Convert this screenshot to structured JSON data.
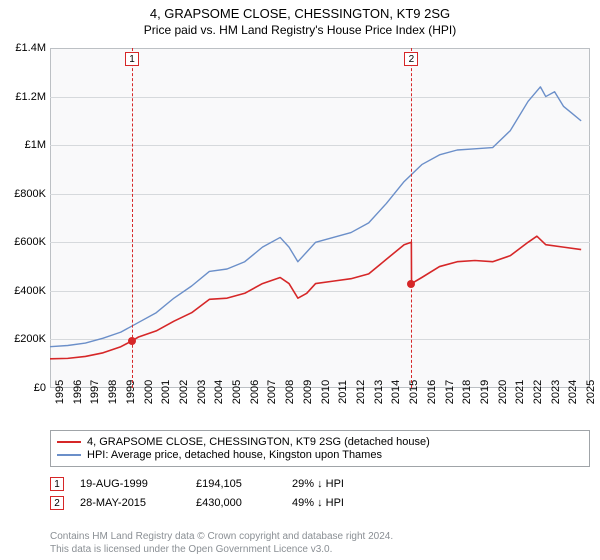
{
  "title": {
    "line1": "4, GRAPSOME CLOSE, CHESSINGTON, KT9 2SG",
    "line2": "Price paid vs. HM Land Registry's House Price Index (HPI)"
  },
  "chart": {
    "type": "line",
    "background_color": "#f9f9fa",
    "grid_color": "#d6d9dc",
    "border_color": "#bcc0c4",
    "ylim": [
      0,
      1400000
    ],
    "yticks": [
      0,
      200000,
      400000,
      600000,
      800000,
      1000000,
      1200000,
      1400000
    ],
    "ytick_labels": [
      "£0",
      "£200K",
      "£400K",
      "£600K",
      "£800K",
      "£1M",
      "£1.2M",
      "£1.4M"
    ],
    "xlim": [
      1995,
      2025.5
    ],
    "xticks": [
      1995,
      1996,
      1997,
      1998,
      1999,
      2000,
      2001,
      2002,
      2003,
      2004,
      2005,
      2006,
      2007,
      2008,
      2009,
      2010,
      2011,
      2012,
      2013,
      2014,
      2015,
      2016,
      2017,
      2018,
      2019,
      2020,
      2021,
      2022,
      2023,
      2024,
      2025
    ],
    "series": [
      {
        "key": "price_paid",
        "color": "#d62728",
        "line_width": 1.6,
        "label": "4, GRAPSOME CLOSE, CHESSINGTON, KT9 2SG (detached house)",
        "points": [
          [
            1995.0,
            120000
          ],
          [
            1996.0,
            122000
          ],
          [
            1997.0,
            130000
          ],
          [
            1998.0,
            145000
          ],
          [
            1999.0,
            170000
          ],
          [
            1999.63,
            194105
          ],
          [
            2000.0,
            210000
          ],
          [
            2001.0,
            235000
          ],
          [
            2002.0,
            275000
          ],
          [
            2003.0,
            310000
          ],
          [
            2004.0,
            365000
          ],
          [
            2005.0,
            370000
          ],
          [
            2006.0,
            390000
          ],
          [
            2007.0,
            430000
          ],
          [
            2008.0,
            455000
          ],
          [
            2008.5,
            430000
          ],
          [
            2009.0,
            370000
          ],
          [
            2009.5,
            390000
          ],
          [
            2010.0,
            430000
          ],
          [
            2011.0,
            440000
          ],
          [
            2012.0,
            450000
          ],
          [
            2013.0,
            470000
          ],
          [
            2014.0,
            530000
          ],
          [
            2015.0,
            590000
          ],
          [
            2015.41,
            600000
          ],
          [
            2015.42,
            430000
          ],
          [
            2016.0,
            455000
          ],
          [
            2017.0,
            500000
          ],
          [
            2018.0,
            520000
          ],
          [
            2019.0,
            525000
          ],
          [
            2020.0,
            520000
          ],
          [
            2021.0,
            545000
          ],
          [
            2022.0,
            600000
          ],
          [
            2022.5,
            625000
          ],
          [
            2023.0,
            590000
          ],
          [
            2024.0,
            580000
          ],
          [
            2025.0,
            570000
          ]
        ]
      },
      {
        "key": "hpi",
        "color": "#6b8fc9",
        "line_width": 1.4,
        "label": "HPI: Average price, detached house, Kingston upon Thames",
        "points": [
          [
            1995.0,
            170000
          ],
          [
            1996.0,
            175000
          ],
          [
            1997.0,
            185000
          ],
          [
            1998.0,
            205000
          ],
          [
            1999.0,
            230000
          ],
          [
            2000.0,
            270000
          ],
          [
            2001.0,
            310000
          ],
          [
            2002.0,
            370000
          ],
          [
            2003.0,
            420000
          ],
          [
            2004.0,
            480000
          ],
          [
            2005.0,
            490000
          ],
          [
            2006.0,
            520000
          ],
          [
            2007.0,
            580000
          ],
          [
            2008.0,
            620000
          ],
          [
            2008.5,
            580000
          ],
          [
            2009.0,
            520000
          ],
          [
            2009.5,
            560000
          ],
          [
            2010.0,
            600000
          ],
          [
            2011.0,
            620000
          ],
          [
            2012.0,
            640000
          ],
          [
            2013.0,
            680000
          ],
          [
            2014.0,
            760000
          ],
          [
            2015.0,
            850000
          ],
          [
            2016.0,
            920000
          ],
          [
            2017.0,
            960000
          ],
          [
            2018.0,
            980000
          ],
          [
            2019.0,
            985000
          ],
          [
            2020.0,
            990000
          ],
          [
            2021.0,
            1060000
          ],
          [
            2022.0,
            1180000
          ],
          [
            2022.7,
            1240000
          ],
          [
            2023.0,
            1200000
          ],
          [
            2023.5,
            1220000
          ],
          [
            2024.0,
            1160000
          ],
          [
            2024.5,
            1130000
          ],
          [
            2025.0,
            1100000
          ]
        ]
      }
    ],
    "events": [
      {
        "n": "1",
        "year": 1999.63,
        "value": 194105,
        "date": "19-AUG-1999",
        "price": "£194,105",
        "delta": "29% ↓ HPI",
        "color": "#d62728"
      },
      {
        "n": "2",
        "year": 2015.41,
        "value": 430000,
        "date": "28-MAY-2015",
        "price": "£430,000",
        "delta": "49% ↓ HPI",
        "color": "#d62728"
      }
    ],
    "label_fontsize": 11,
    "title_fontsize": 13
  },
  "legend": {
    "border_color": "#a0a4a8",
    "items": [
      {
        "color": "#d62728",
        "label": "4, GRAPSOME CLOSE, CHESSINGTON, KT9 2SG (detached house)"
      },
      {
        "color": "#6b8fc9",
        "label": "HPI: Average price, detached house, Kingston upon Thames"
      }
    ]
  },
  "footer": {
    "line1": "Contains HM Land Registry data © Crown copyright and database right 2024.",
    "line2": "This data is licensed under the Open Government Licence v3.0."
  }
}
